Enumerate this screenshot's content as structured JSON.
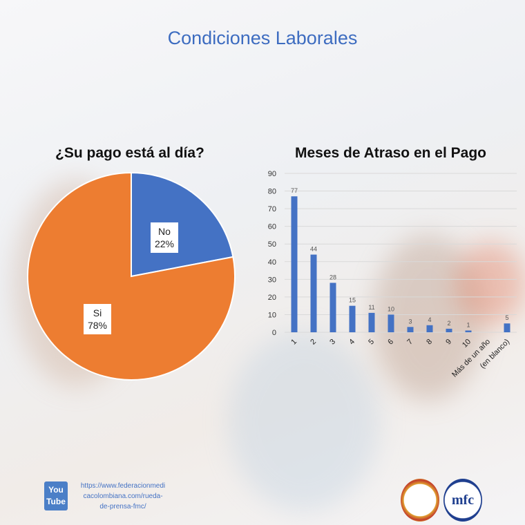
{
  "title": "Condiciones Laborales",
  "chart_data": [
    {
      "type": "pie",
      "title": "¿Su pago está al día?",
      "slices": [
        {
          "label": "No",
          "value": 22,
          "display": "22%",
          "color": "#4472c4"
        },
        {
          "label": "Si",
          "value": 78,
          "display": "78%",
          "color": "#ed7d31"
        }
      ]
    },
    {
      "type": "bar",
      "title": "Meses de Atraso en el Pago",
      "categories": [
        "1",
        "2",
        "3",
        "4",
        "5",
        "6",
        "7",
        "8",
        "9",
        "10",
        "Más de un año",
        "(en blanco)"
      ],
      "values": [
        77,
        44,
        28,
        15,
        11,
        10,
        3,
        4,
        2,
        1,
        null,
        5
      ],
      "ylim": [
        0,
        90
      ],
      "yticks": [
        0,
        10,
        20,
        30,
        40,
        50,
        60,
        70,
        80,
        90
      ],
      "grid": true,
      "color": "#4472c4"
    }
  ],
  "footer": {
    "youtube_top": "You",
    "youtube_bottom": "Tube",
    "url_lines": [
      "https://www.federacionmedi",
      "cacolombiana.com/rueda-",
      "de-prensa-fmc/"
    ],
    "logo_text": "mfc"
  }
}
